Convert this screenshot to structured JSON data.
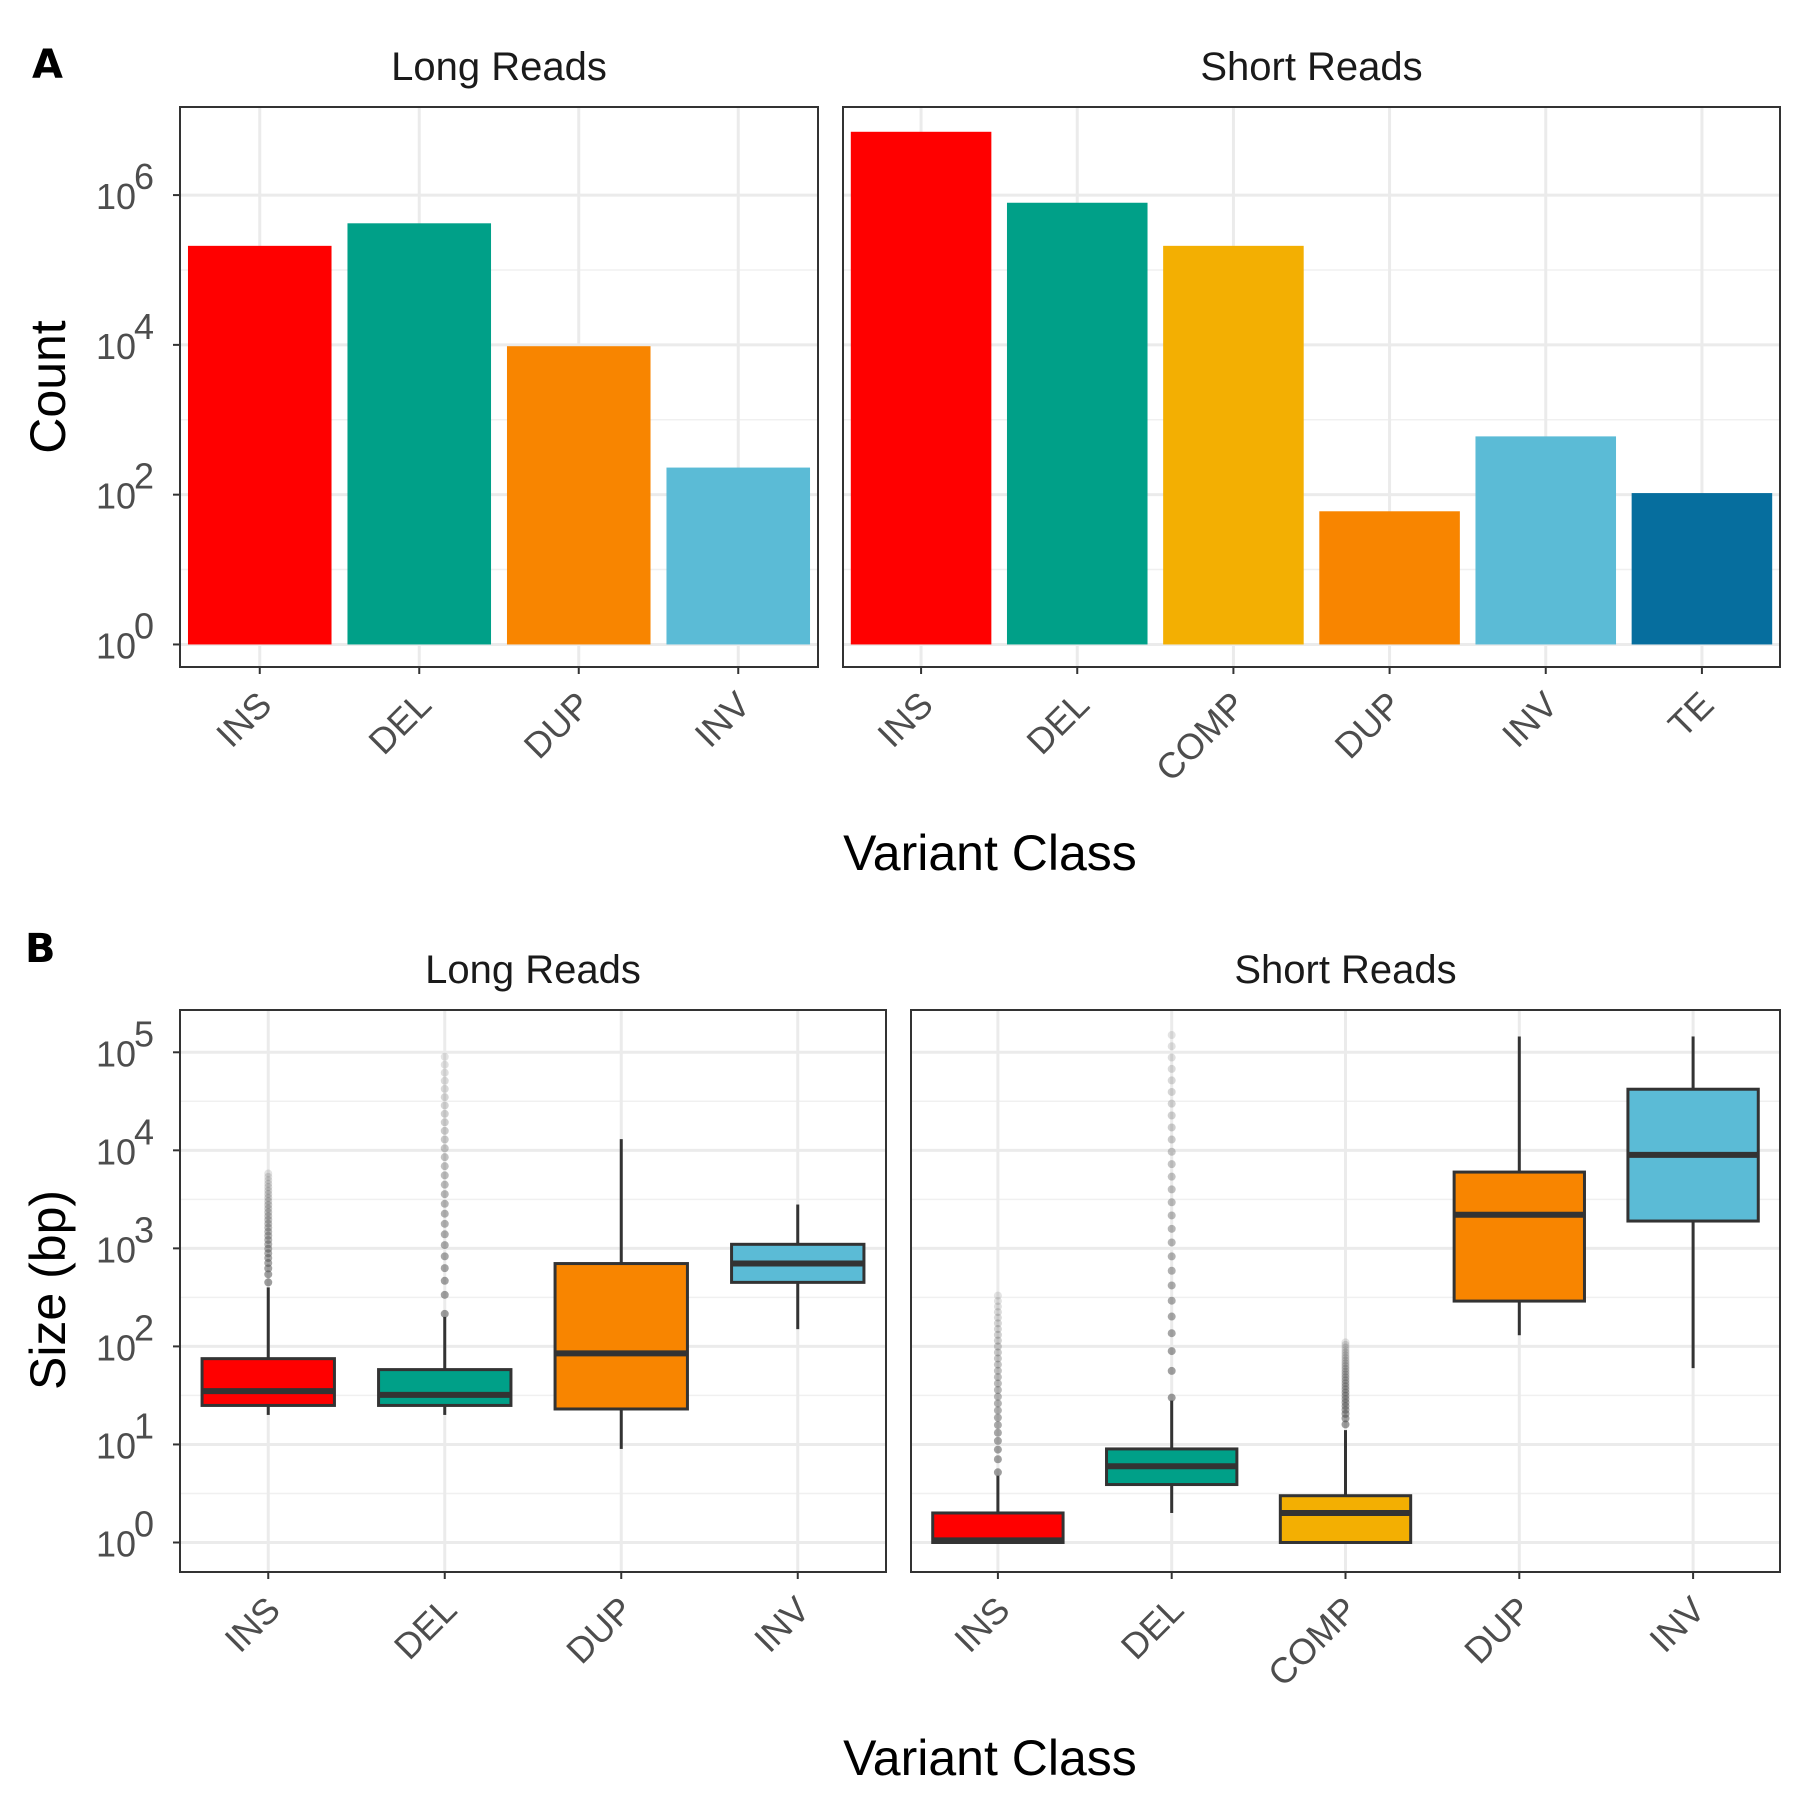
{
  "chart_data": [
    {
      "panel": "A",
      "type": "bar",
      "ylabel": "Count",
      "xlabel": "Variant Class",
      "y_scale": "log10",
      "y_ticks": [
        {
          "value": 1,
          "base": "10",
          "exp": "0"
        },
        {
          "value": 100,
          "base": "10",
          "exp": "2"
        },
        {
          "value": 10000,
          "base": "10",
          "exp": "4"
        },
        {
          "value": 1000000,
          "base": "10",
          "exp": "6"
        }
      ],
      "ylim": [
        0.5,
        15000000
      ],
      "grid": true,
      "facets": [
        {
          "strip": "Long Reads",
          "categories": [
            "INS",
            "DEL",
            "DUP",
            "INV"
          ],
          "values": [
            210000,
            420000,
            9600,
            230
          ],
          "colors": [
            "#FF0000",
            "#00A088",
            "#F88500",
            "#5BBBD6"
          ]
        },
        {
          "strip": "Short Reads",
          "categories": [
            "INS",
            "DEL",
            "COMP",
            "DUP",
            "INV",
            "TE"
          ],
          "values": [
            7000000,
            790000,
            210000,
            60,
            600,
            105
          ],
          "colors": [
            "#FF0000",
            "#00A088",
            "#F3AF02",
            "#F88500",
            "#5BBBD6",
            "#066E9E"
          ]
        }
      ]
    },
    {
      "panel": "B",
      "type": "box",
      "ylabel": "Size (bp)",
      "xlabel": "Variant Class",
      "y_scale": "log10",
      "y_ticks": [
        {
          "value": 1,
          "base": "10",
          "exp": "0"
        },
        {
          "value": 10,
          "base": "10",
          "exp": "1"
        },
        {
          "value": 100,
          "base": "10",
          "exp": "2"
        },
        {
          "value": 1000,
          "base": "10",
          "exp": "3"
        },
        {
          "value": 10000,
          "base": "10",
          "exp": "4"
        },
        {
          "value": 100000,
          "base": "10",
          "exp": "5"
        }
      ],
      "ylim": [
        0.5,
        270000
      ],
      "grid": true,
      "facets": [
        {
          "strip": "Long Reads",
          "categories": [
            "INS",
            "DEL",
            "DUP",
            "INV"
          ],
          "boxes": [
            {
              "color": "#FF0000",
              "min": 20,
              "q1": 25,
              "median": 35,
              "q3": 75,
              "max": 400,
              "outliers_from": 450,
              "outliers_to": 5800
            },
            {
              "color": "#00A088",
              "min": 20,
              "q1": 25,
              "median": 32,
              "q3": 58,
              "max": 200,
              "outliers_from": 215,
              "outliers_to": 90000
            },
            {
              "color": "#F88500",
              "min": 9,
              "q1": 23,
              "median": 85,
              "q3": 700,
              "max": 13000
            },
            {
              "color": "#5BBBD6",
              "min": 150,
              "q1": 450,
              "median": 700,
              "q3": 1100,
              "max": 2800
            }
          ]
        },
        {
          "strip": "Short Reads",
          "categories": [
            "INS",
            "DEL",
            "COMP",
            "DUP",
            "INV"
          ],
          "boxes": [
            {
              "color": "#FF0000",
              "min": 1,
              "q1": 1,
              "median": 1.05,
              "q3": 2,
              "max": 4.8,
              "outliers_from": 5.2,
              "outliers_to": 330
            },
            {
              "color": "#00A088",
              "min": 2,
              "q1": 3.9,
              "median": 6,
              "q3": 9,
              "max": 28,
              "outliers_from": 30,
              "outliers_to": 150000
            },
            {
              "color": "#F3AF02",
              "min": 1,
              "q1": 1,
              "median": 2,
              "q3": 3,
              "max": 14,
              "outliers_from": 16,
              "outliers_to": 110
            },
            {
              "color": "#F88500",
              "min": 130,
              "q1": 290,
              "median": 2200,
              "q3": 6000,
              "max": 145000
            },
            {
              "color": "#5BBBD6",
              "min": 60,
              "q1": 1900,
              "median": 9000,
              "q3": 42000,
              "max": 145000
            }
          ]
        }
      ]
    }
  ]
}
